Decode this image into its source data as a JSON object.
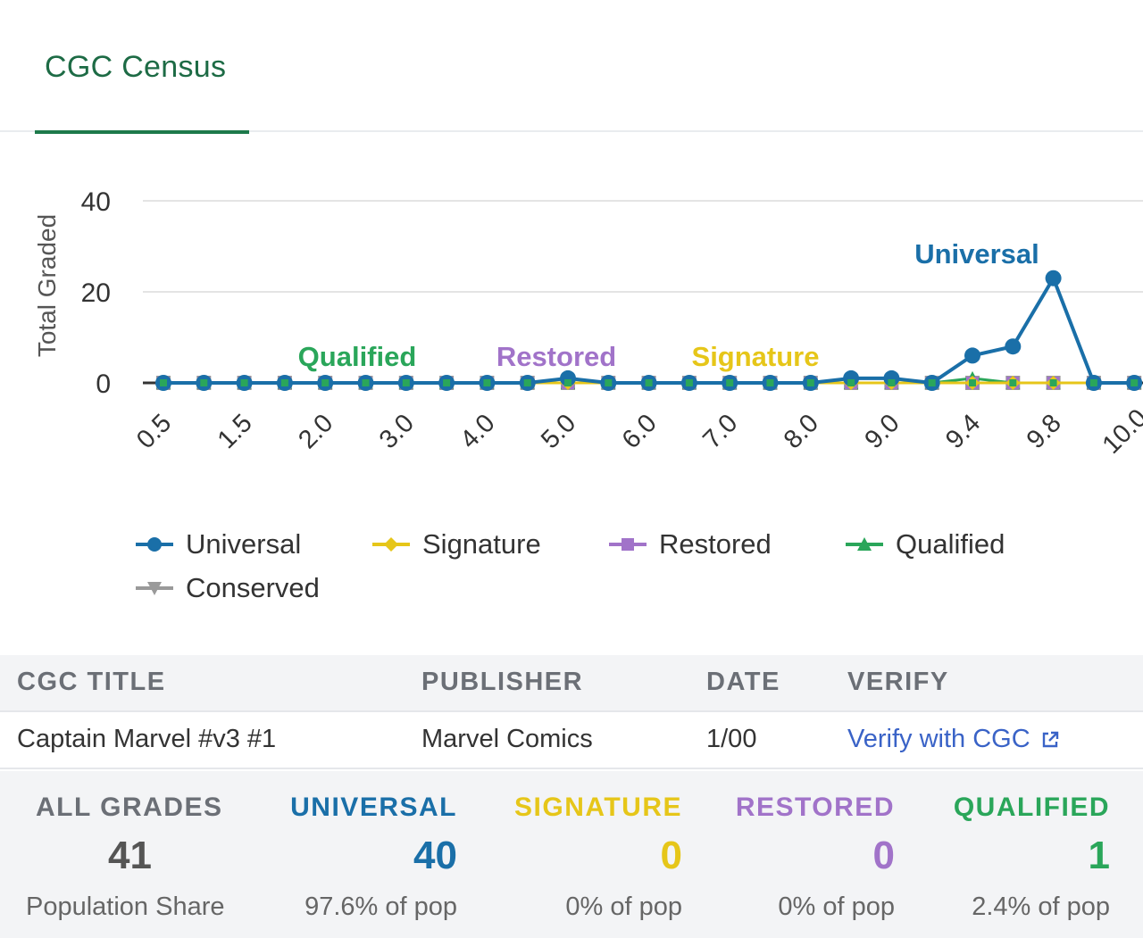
{
  "tabs": {
    "active_label": "CGC Census"
  },
  "colors": {
    "universal": "#1a6fa8",
    "signature": "#e6c619",
    "restored": "#a173c9",
    "qualified": "#2aa65a",
    "conserved": "#9a9a9a",
    "tab_accent": "#1d7a4b"
  },
  "chart_data": {
    "type": "line",
    "ylabel": "Total Graded",
    "xlabel": "",
    "ylim": [
      0,
      40
    ],
    "y_ticks": [
      "0",
      "20",
      "40"
    ],
    "grid": true,
    "legend_placement": "bottom",
    "x": [
      "0.5",
      "1.0",
      "1.5",
      "1.8",
      "2.0",
      "2.5",
      "3.0",
      "3.5",
      "4.0",
      "4.5",
      "5.0",
      "5.5",
      "6.0",
      "6.5",
      "7.0",
      "7.5",
      "8.0",
      "8.5",
      "9.0",
      "9.2",
      "9.4",
      "9.6",
      "9.8",
      "9.9",
      "10.0"
    ],
    "x_tick_labels": [
      "0.5",
      "1.5",
      "2.0",
      "3.0",
      "4.0",
      "5.0",
      "6.0",
      "7.0",
      "8.0",
      "9.0",
      "9.4",
      "9.8",
      "10.0"
    ],
    "series": [
      {
        "name": "Universal",
        "color": "#1a6fa8",
        "marker": "circle",
        "values": [
          0,
          0,
          0,
          0,
          0,
          0,
          0,
          0,
          0,
          0,
          1,
          0,
          0,
          0,
          0,
          0,
          0,
          1,
          1,
          0,
          6,
          8,
          23,
          0,
          0
        ]
      },
      {
        "name": "Signature",
        "color": "#e6c619",
        "marker": "diamond",
        "values": [
          0,
          0,
          0,
          0,
          0,
          0,
          0,
          0,
          0,
          0,
          0,
          0,
          0,
          0,
          0,
          0,
          0,
          0,
          0,
          0,
          0,
          0,
          0,
          0,
          0
        ]
      },
      {
        "name": "Restored",
        "color": "#a173c9",
        "marker": "square",
        "values": [
          0,
          0,
          0,
          0,
          0,
          0,
          0,
          0,
          0,
          0,
          0,
          0,
          0,
          0,
          0,
          0,
          0,
          0,
          0,
          0,
          0,
          0,
          0,
          0,
          0
        ]
      },
      {
        "name": "Qualified",
        "color": "#2aa65a",
        "marker": "triangle",
        "values": [
          0,
          0,
          0,
          0,
          0,
          0,
          0,
          0,
          0,
          0,
          0,
          0,
          0,
          0,
          0,
          0,
          0,
          0,
          0,
          0,
          1,
          0,
          0,
          0,
          0
        ]
      },
      {
        "name": "Conserved",
        "color": "#9a9a9a",
        "marker": "triangle-down",
        "values": [
          0,
          0,
          0,
          0,
          0,
          0,
          0,
          0,
          0,
          0,
          0,
          0,
          0,
          0,
          0,
          0,
          0,
          0,
          0,
          0,
          0,
          0,
          0,
          0,
          0
        ]
      }
    ],
    "annotations": [
      {
        "text": "Qualified",
        "color": "#2aa65a"
      },
      {
        "text": "Restored",
        "color": "#a173c9"
      },
      {
        "text": "Signature",
        "color": "#e6c619"
      },
      {
        "text": "Universal",
        "color": "#1a6fa8"
      }
    ]
  },
  "legend": {
    "items": [
      {
        "label": "Universal",
        "icon": "circle-marker-icon"
      },
      {
        "label": "Signature",
        "icon": "diamond-marker-icon"
      },
      {
        "label": "Restored",
        "icon": "square-marker-icon"
      },
      {
        "label": "Qualified",
        "icon": "triangle-marker-icon"
      },
      {
        "label": "Conserved",
        "icon": "triangle-down-marker-icon"
      }
    ]
  },
  "meta": {
    "headers": {
      "title": "CGC TITLE",
      "publisher": "PUBLISHER",
      "date": "DATE",
      "verify": "VERIFY"
    },
    "row": {
      "title": "Captain Marvel #v3 #1",
      "publisher": "Marvel Comics",
      "date": "1/00",
      "verify_link": "Verify with CGC",
      "verify_icon": "external-link-icon"
    }
  },
  "stats": {
    "all": {
      "label": "ALL GRADES",
      "value": "41",
      "sub": "Population Share"
    },
    "universal": {
      "label": "UNIVERSAL",
      "value": "40",
      "sub": "97.6% of pop"
    },
    "signature": {
      "label": "SIGNATURE",
      "value": "0",
      "sub": "0% of pop"
    },
    "restored": {
      "label": "RESTORED",
      "value": "0",
      "sub": "0% of pop"
    },
    "qualified": {
      "label": "QUALIFIED",
      "value": "1",
      "sub": "2.4% of pop"
    }
  }
}
